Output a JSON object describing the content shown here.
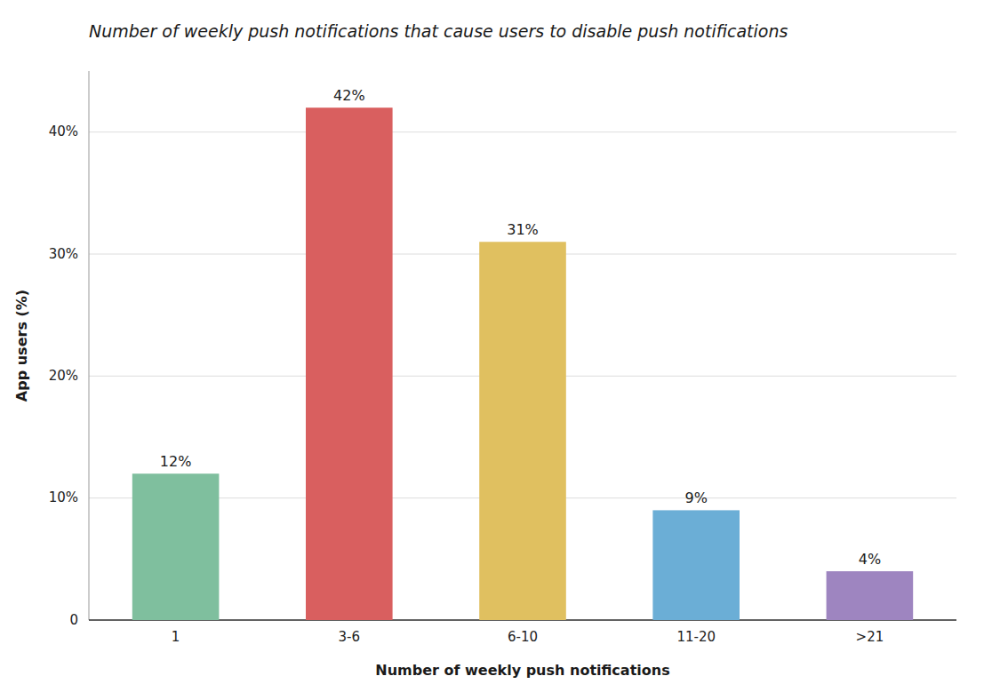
{
  "chart_data": {
    "type": "bar",
    "title": "Number of weekly push notifications that cause users to disable push notifications",
    "categories": [
      "1",
      "3-6",
      "6-10",
      "11-20",
      ">21"
    ],
    "values": [
      12,
      42,
      31,
      9,
      4
    ],
    "value_labels": [
      "12%",
      "42%",
      "31%",
      "9%",
      "4%"
    ],
    "data_labels": true,
    "colors": [
      "#7fbf9e",
      "#d95f5f",
      "#e0c060",
      "#6baed6",
      "#9e85c0"
    ],
    "xlabel": "Number of weekly push notifications",
    "ylabel": "App users (%)",
    "ylim": [
      0,
      45
    ],
    "yticks": [
      0,
      {
        "value": 10,
        "label": "10%"
      },
      {
        "value": 20,
        "label": "20%"
      },
      {
        "value": 30,
        "label": "30%"
      },
      {
        "value": 40,
        "label": "40%"
      }
    ],
    "grid": true
  }
}
